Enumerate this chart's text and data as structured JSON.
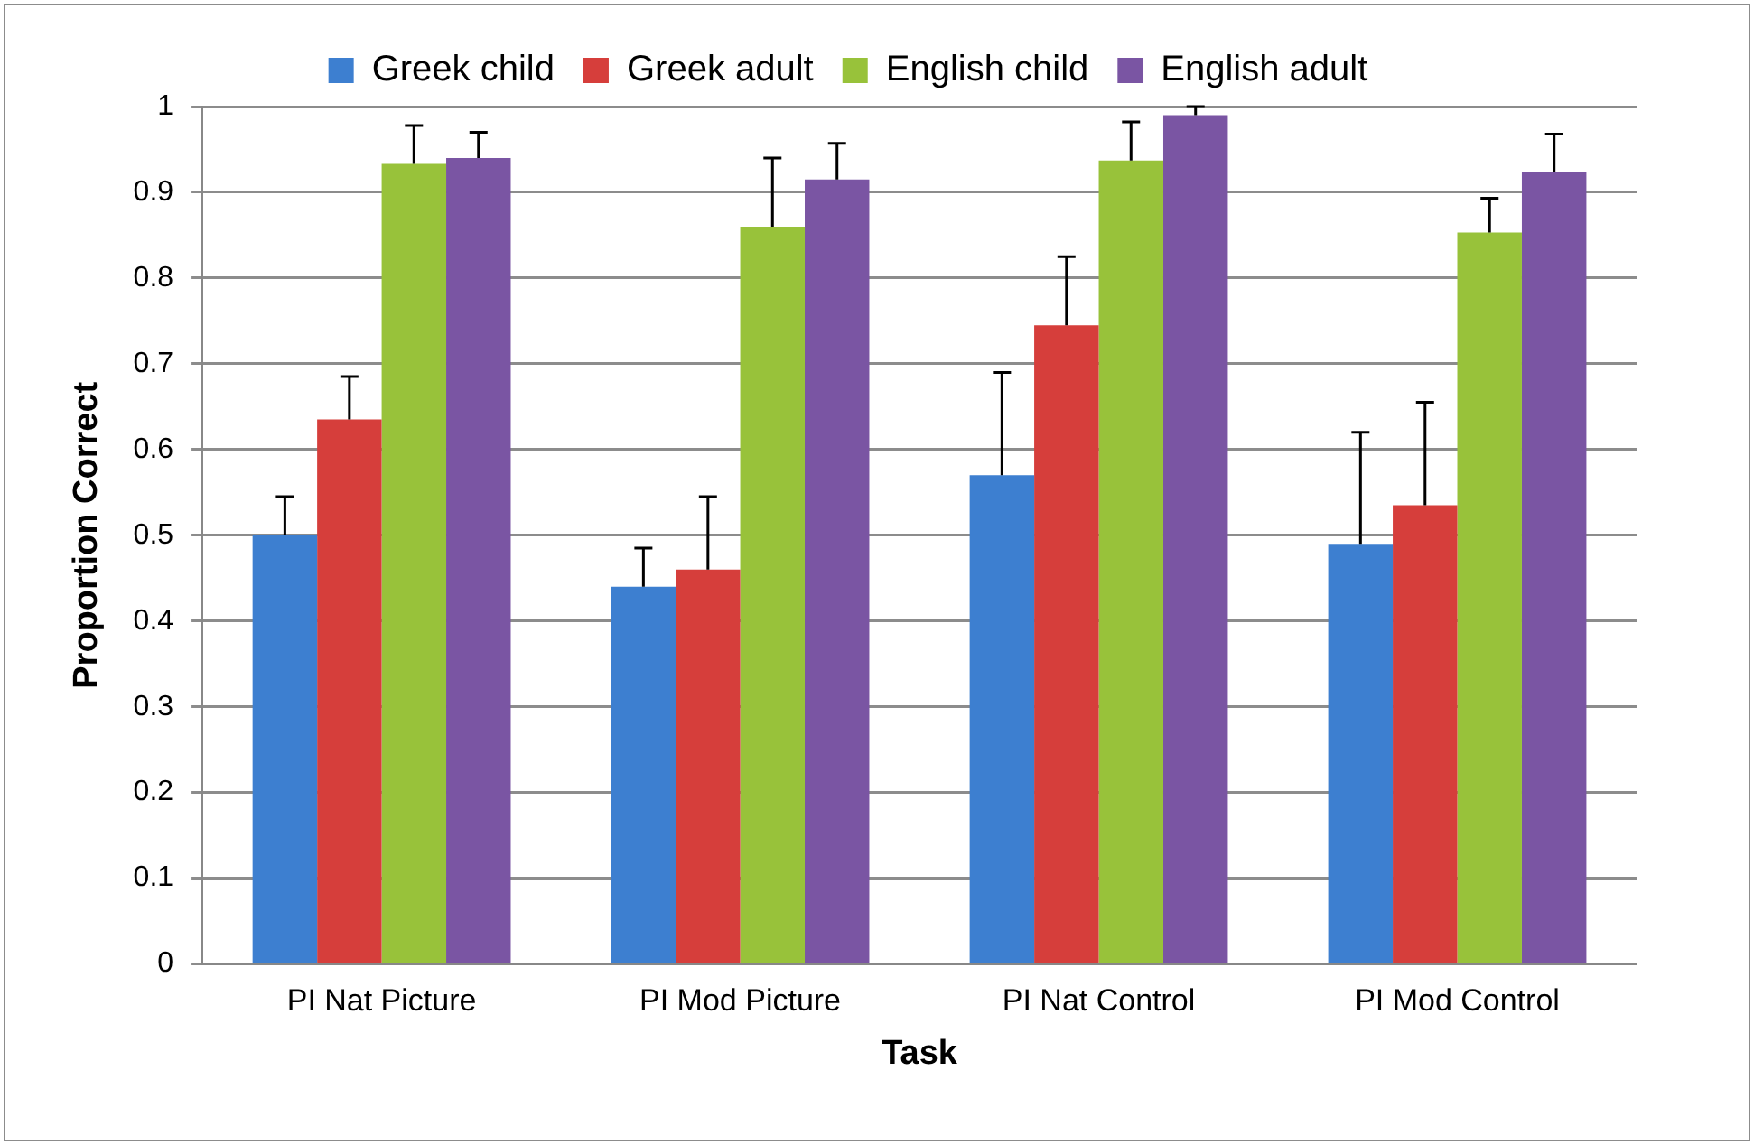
{
  "chart_data": {
    "type": "bar",
    "xlabel": "Task",
    "ylabel": "Proportion Correct",
    "categories": [
      "PI Nat Picture",
      "PI Mod Picture",
      "PI Nat Control",
      "PI Mod Control"
    ],
    "series": [
      {
        "name": "Greek child",
        "color": "#3d7fd0",
        "values": [
          0.5,
          0.44,
          0.57,
          0.49
        ],
        "errors": [
          [
            0.5,
            0.545
          ],
          [
            0.44,
            0.485
          ],
          [
            0.57,
            0.69
          ],
          [
            0.49,
            0.62
          ]
        ]
      },
      {
        "name": "Greek adult",
        "color": "#d63e3b",
        "values": [
          0.635,
          0.46,
          0.745,
          0.535
        ],
        "errors": [
          [
            0.635,
            0.685
          ],
          [
            0.46,
            0.545
          ],
          [
            0.745,
            0.825
          ],
          [
            0.535,
            0.655
          ]
        ]
      },
      {
        "name": "English child",
        "color": "#98c23a",
        "values": [
          0.933,
          0.86,
          0.937,
          0.853
        ],
        "errors": [
          [
            0.933,
            0.978
          ],
          [
            0.86,
            0.94
          ],
          [
            0.937,
            0.982
          ],
          [
            0.853,
            0.893
          ]
        ]
      },
      {
        "name": "English adult",
        "color": "#7a55a3",
        "values": [
          0.94,
          0.915,
          0.99,
          0.923
        ],
        "errors": [
          [
            0.94,
            0.97
          ],
          [
            0.915,
            0.957
          ],
          [
            0.99,
            1
          ],
          [
            0.923,
            0.968
          ]
        ]
      }
    ],
    "ylim": [
      0,
      1
    ],
    "yticks": [
      0,
      0.1,
      0.2,
      0.3,
      0.4,
      0.5,
      0.6,
      0.7,
      0.8,
      0.9,
      1
    ],
    "grid": "y",
    "legend": "top"
  }
}
